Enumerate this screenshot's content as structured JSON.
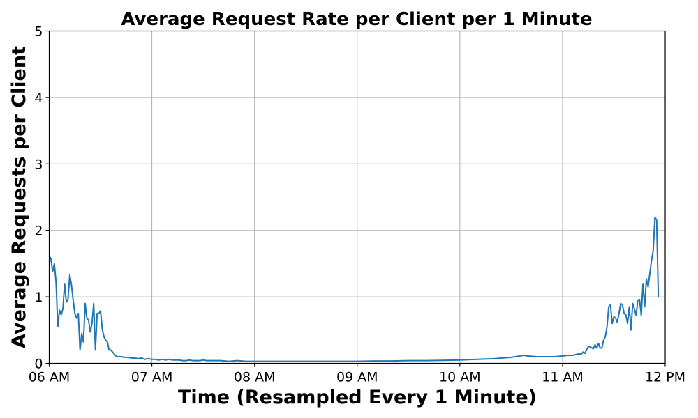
{
  "chart_data": {
    "type": "line",
    "title": "Average Request Rate per Client per 1 Minute",
    "xlabel": "Time (Resampled Every 1 Minute)",
    "ylabel": "Average Requests per Client",
    "x_unit": "minutes",
    "x_ticks": [
      {
        "value": 0,
        "label": "06 AM"
      },
      {
        "value": 60,
        "label": "07 AM"
      },
      {
        "value": 120,
        "label": "08 AM"
      },
      {
        "value": 180,
        "label": "09 AM"
      },
      {
        "value": 240,
        "label": "10 AM"
      },
      {
        "value": 300,
        "label": "11 AM"
      },
      {
        "value": 360,
        "label": "12 PM"
      }
    ],
    "y_ticks": [
      0,
      1,
      2,
      3,
      4,
      5
    ],
    "xlim": [
      0,
      360
    ],
    "ylim": [
      0,
      5
    ],
    "grid": true,
    "series": [
      {
        "color": "#1f77b4",
        "points": [
          [
            0,
            1.62
          ],
          [
            1,
            1.57
          ],
          [
            2,
            1.38
          ],
          [
            3,
            1.5
          ],
          [
            4,
            1.22
          ],
          [
            5,
            0.55
          ],
          [
            6,
            0.8
          ],
          [
            7,
            0.73
          ],
          [
            8,
            0.82
          ],
          [
            9,
            1.2
          ],
          [
            10,
            0.92
          ],
          [
            11,
            0.97
          ],
          [
            12,
            1.33
          ],
          [
            13,
            1.18
          ],
          [
            14,
            0.95
          ],
          [
            15,
            0.75
          ],
          [
            16,
            0.68
          ],
          [
            17,
            0.75
          ],
          [
            18,
            0.2
          ],
          [
            19,
            0.45
          ],
          [
            20,
            0.32
          ],
          [
            21,
            0.9
          ],
          [
            22,
            0.68
          ],
          [
            23,
            0.65
          ],
          [
            24,
            0.47
          ],
          [
            25,
            0.6
          ],
          [
            26,
            0.9
          ],
          [
            27,
            0.2
          ],
          [
            28,
            0.75
          ],
          [
            29,
            0.75
          ],
          [
            30,
            0.79
          ],
          [
            31,
            0.52
          ],
          [
            32,
            0.4
          ],
          [
            33,
            0.35
          ],
          [
            34,
            0.32
          ],
          [
            35,
            0.2
          ],
          [
            36,
            0.2
          ],
          [
            37,
            0.17
          ],
          [
            38,
            0.14
          ],
          [
            39,
            0.11
          ],
          [
            40,
            0.1
          ],
          [
            42,
            0.1
          ],
          [
            44,
            0.09
          ],
          [
            46,
            0.09
          ],
          [
            48,
            0.08
          ],
          [
            50,
            0.08
          ],
          [
            52,
            0.07
          ],
          [
            54,
            0.08
          ],
          [
            56,
            0.06
          ],
          [
            58,
            0.07
          ],
          [
            60,
            0.06
          ],
          [
            62,
            0.06
          ],
          [
            64,
            0.05
          ],
          [
            66,
            0.06
          ],
          [
            68,
            0.05
          ],
          [
            70,
            0.06
          ],
          [
            72,
            0.05
          ],
          [
            74,
            0.05
          ],
          [
            76,
            0.05
          ],
          [
            78,
            0.04
          ],
          [
            80,
            0.04
          ],
          [
            82,
            0.05
          ],
          [
            84,
            0.04
          ],
          [
            86,
            0.04
          ],
          [
            88,
            0.04
          ],
          [
            90,
            0.05
          ],
          [
            92,
            0.04
          ],
          [
            94,
            0.04
          ],
          [
            96,
            0.04
          ],
          [
            98,
            0.04
          ],
          [
            100,
            0.04
          ],
          [
            105,
            0.03
          ],
          [
            110,
            0.04
          ],
          [
            115,
            0.03
          ],
          [
            120,
            0.03
          ],
          [
            130,
            0.03
          ],
          [
            140,
            0.03
          ],
          [
            150,
            0.03
          ],
          [
            160,
            0.03
          ],
          [
            170,
            0.03
          ],
          [
            180,
            0.03
          ],
          [
            190,
            0.035
          ],
          [
            200,
            0.035
          ],
          [
            210,
            0.04
          ],
          [
            220,
            0.04
          ],
          [
            230,
            0.045
          ],
          [
            240,
            0.05
          ],
          [
            250,
            0.06
          ],
          [
            260,
            0.07
          ],
          [
            270,
            0.09
          ],
          [
            275,
            0.11
          ],
          [
            277,
            0.12
          ],
          [
            280,
            0.11
          ],
          [
            285,
            0.1
          ],
          [
            290,
            0.1
          ],
          [
            295,
            0.1
          ],
          [
            300,
            0.11
          ],
          [
            303,
            0.12
          ],
          [
            306,
            0.12
          ],
          [
            309,
            0.14
          ],
          [
            311,
            0.14
          ],
          [
            312,
            0.17
          ],
          [
            313,
            0.15
          ],
          [
            315,
            0.25
          ],
          [
            316,
            0.25
          ],
          [
            318,
            0.22
          ],
          [
            319,
            0.28
          ],
          [
            320,
            0.23
          ],
          [
            321,
            0.3
          ],
          [
            322,
            0.23
          ],
          [
            323,
            0.23
          ],
          [
            324,
            0.35
          ],
          [
            325,
            0.4
          ],
          [
            326,
            0.55
          ],
          [
            327,
            0.85
          ],
          [
            328,
            0.88
          ],
          [
            329,
            0.6
          ],
          [
            330,
            0.7
          ],
          [
            331,
            0.68
          ],
          [
            332,
            0.62
          ],
          [
            333,
            0.75
          ],
          [
            334,
            0.9
          ],
          [
            335,
            0.88
          ],
          [
            336,
            0.75
          ],
          [
            337,
            0.73
          ],
          [
            338,
            0.6
          ],
          [
            339,
            0.85
          ],
          [
            340,
            0.5
          ],
          [
            341,
            0.9
          ],
          [
            342,
            0.82
          ],
          [
            343,
            0.72
          ],
          [
            344,
            0.95
          ],
          [
            345,
            0.96
          ],
          [
            346,
            0.72
          ],
          [
            347,
            1.2
          ],
          [
            348,
            0.85
          ],
          [
            349,
            1.27
          ],
          [
            350,
            1.15
          ],
          [
            351,
            1.35
          ],
          [
            352,
            1.55
          ],
          [
            353,
            1.7
          ],
          [
            354,
            2.2
          ],
          [
            355,
            2.15
          ],
          [
            356,
            1.0
          ]
        ]
      }
    ]
  }
}
